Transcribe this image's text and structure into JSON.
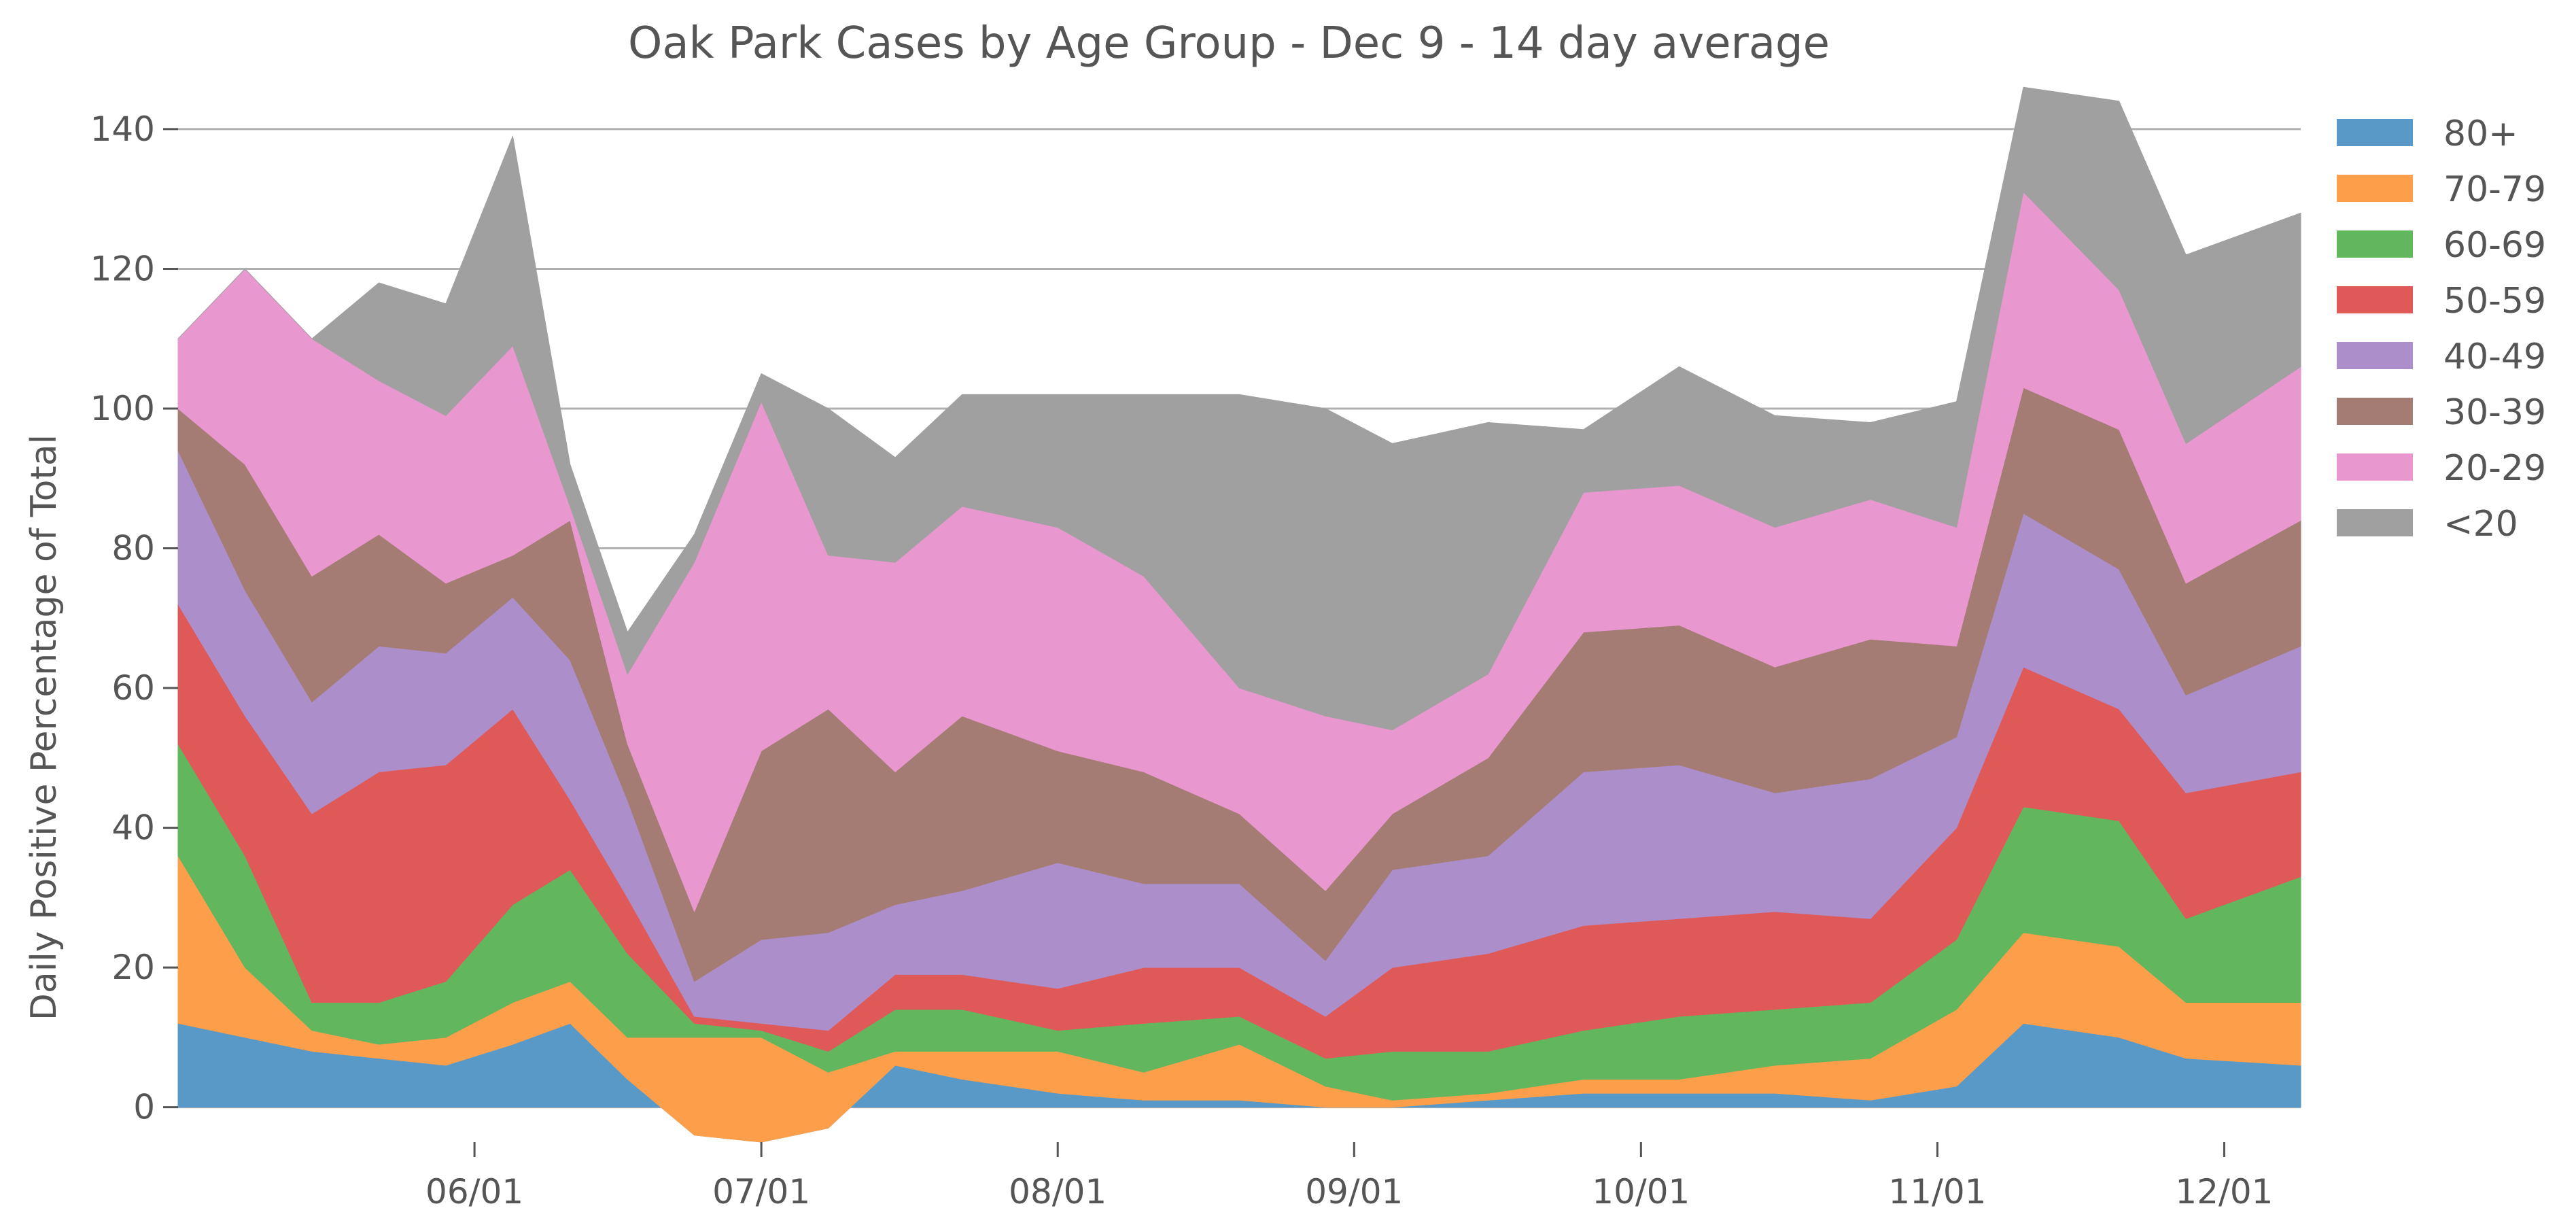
{
  "chart_data": {
    "type": "area",
    "stacked": true,
    "title": "Oak Park Cases by Age Group - Dec 9 - 14 day average",
    "xlabel": "",
    "ylabel": "Daily Positive Percentage of Total",
    "ylim": [
      -5,
      147
    ],
    "xlim": [
      "2020-05-01",
      "2020-12-09"
    ],
    "grid": "horizontal",
    "legend_position": "outside-right",
    "x_ticks": [
      {
        "date": "2020-06-01",
        "label": "06/01"
      },
      {
        "date": "2020-07-01",
        "label": "07/01"
      },
      {
        "date": "2020-08-01",
        "label": "08/01"
      },
      {
        "date": "2020-09-01",
        "label": "09/01"
      },
      {
        "date": "2020-10-01",
        "label": "10/01"
      },
      {
        "date": "2020-11-01",
        "label": "11/01"
      },
      {
        "date": "2020-12-01",
        "label": "12/01"
      }
    ],
    "y_ticks": [
      0,
      20,
      40,
      60,
      80,
      100,
      120,
      140
    ],
    "x": [
      "2020-05-01",
      "2020-05-08",
      "2020-05-15",
      "2020-05-22",
      "2020-05-29",
      "2020-06-05",
      "2020-06-11",
      "2020-06-17",
      "2020-06-24",
      "2020-07-01",
      "2020-07-08",
      "2020-07-15",
      "2020-07-22",
      "2020-08-01",
      "2020-08-10",
      "2020-08-20",
      "2020-08-29",
      "2020-09-05",
      "2020-09-15",
      "2020-09-25",
      "2020-10-05",
      "2020-10-15",
      "2020-10-25",
      "2020-11-03",
      "2020-11-10",
      "2020-11-20",
      "2020-11-27",
      "2020-12-09"
    ],
    "series": [
      {
        "name": "80+",
        "color": "#5899c8",
        "values": [
          12,
          10,
          8,
          7,
          6,
          9,
          12,
          4,
          -4,
          -5,
          -3,
          6,
          4,
          2,
          1,
          1,
          0,
          0,
          1,
          2,
          2,
          2,
          1,
          3,
          12,
          10,
          7,
          6
        ]
      },
      {
        "name": "70-79",
        "color": "#fd9f4a",
        "values": [
          24,
          10,
          3,
          2,
          4,
          6,
          6,
          6,
          14,
          15,
          8,
          2,
          4,
          6,
          4,
          8,
          3,
          1,
          1,
          2,
          2,
          4,
          6,
          11,
          13,
          13,
          8,
          9
        ]
      },
      {
        "name": "60-69",
        "color": "#61b65e",
        "values": [
          16,
          16,
          4,
          6,
          8,
          14,
          16,
          12,
          2,
          1,
          3,
          6,
          6,
          3,
          7,
          4,
          4,
          7,
          6,
          7,
          9,
          8,
          8,
          10,
          18,
          18,
          12,
          18
        ]
      },
      {
        "name": "50-59",
        "color": "#e05959",
        "values": [
          20,
          20,
          27,
          33,
          31,
          28,
          10,
          8,
          1,
          1,
          3,
          5,
          5,
          6,
          8,
          7,
          6,
          12,
          14,
          15,
          14,
          14,
          12,
          16,
          20,
          16,
          18,
          15
        ]
      },
      {
        "name": "40-49",
        "color": "#ac8fca",
        "values": [
          22,
          18,
          16,
          18,
          16,
          16,
          20,
          14,
          5,
          12,
          14,
          10,
          12,
          18,
          12,
          12,
          8,
          14,
          14,
          22,
          22,
          17,
          20,
          13,
          22,
          20,
          14,
          18
        ]
      },
      {
        "name": "30-39",
        "color": "#a47c73",
        "values": [
          6,
          18,
          18,
          16,
          10,
          6,
          20,
          8,
          10,
          27,
          32,
          19,
          25,
          16,
          16,
          10,
          10,
          8,
          14,
          20,
          20,
          18,
          20,
          13,
          18,
          20,
          16,
          18
        ]
      },
      {
        "name": "20-29",
        "color": "#e897cf",
        "values": [
          10,
          28,
          34,
          22,
          24,
          30,
          2,
          10,
          50,
          50,
          22,
          30,
          30,
          32,
          28,
          18,
          25,
          12,
          12,
          20,
          20,
          20,
          20,
          17,
          28,
          20,
          20,
          22
        ]
      },
      {
        "name": "<20",
        "color": "#a0a0a0",
        "values": [
          0,
          0,
          0,
          14,
          16,
          30,
          6,
          6,
          4,
          4,
          21,
          15,
          16,
          19,
          26,
          42,
          44,
          41,
          36,
          9,
          17,
          16,
          11,
          18,
          15,
          27,
          27,
          22
        ]
      }
    ]
  }
}
